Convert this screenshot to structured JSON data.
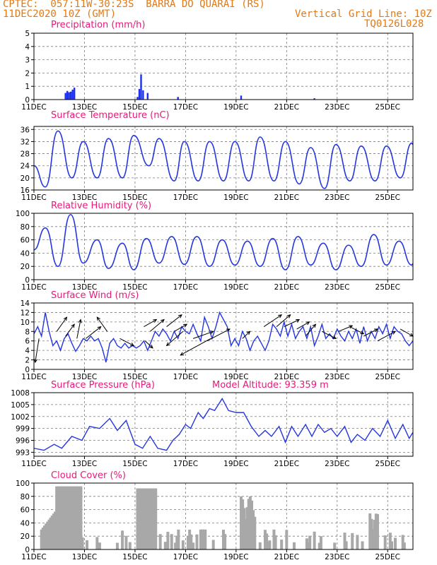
{
  "header": {
    "line1": "CPTEC:  057:11W-30:23S  BARRA DO QUARAI (RS)",
    "line2_left": "11DEC2020 10Z (GMT)",
    "line2_right": "Vertical Grid Line: 10Z",
    "line3_right": "TQ0126L028"
  },
  "colors": {
    "line": "#2436e0",
    "bar_precip": "#1c2ff0",
    "bar_cloud": "#a8a8a8",
    "title": "#e8197a",
    "header": "#e07a18"
  },
  "chart_data": [
    {
      "type": "bar",
      "title": "Precipitation (mm/h)",
      "x_ticks": [
        "11DEC",
        "13DEC",
        "15DEC",
        "17DEC",
        "19DEC",
        "21DEC",
        "23DEC",
        "25DEC"
      ],
      "y_ticks": [
        "0",
        "1",
        "2",
        "3",
        "4",
        "5"
      ],
      "ylim": [
        0,
        5
      ],
      "xlim_days": [
        0,
        15
      ],
      "grid": true,
      "x": [
        1.25,
        1.32,
        1.39,
        1.46,
        1.53,
        1.6,
        4.1,
        4.17,
        4.24,
        4.32,
        4.5,
        5.7,
        8.2,
        11.1
      ],
      "values": [
        0.5,
        0.65,
        0.55,
        0.6,
        0.75,
        0.9,
        0.2,
        0.8,
        1.9,
        0.7,
        0.5,
        0.2,
        0.3,
        0.1
      ]
    },
    {
      "type": "line",
      "title": "Surface Temperature (nC)",
      "x_ticks": [
        "11DEC",
        "13DEC",
        "15DEC",
        "17DEC",
        "19DEC",
        "21DEC",
        "23DEC",
        "25DEC"
      ],
      "y_ticks": [
        "16",
        "20",
        "24",
        "28",
        "32",
        "36"
      ],
      "ylim": [
        16,
        37
      ],
      "xlim_days": [
        0,
        15
      ],
      "grid": true,
      "min_max": [
        [
          0,
          24
        ],
        [
          0.45,
          17
        ],
        [
          0.95,
          35.5
        ],
        [
          1.5,
          20
        ],
        [
          1.95,
          32
        ],
        [
          2.5,
          20
        ],
        [
          2.95,
          33
        ],
        [
          3.5,
          20
        ],
        [
          3.95,
          34
        ],
        [
          4.55,
          24
        ],
        [
          4.95,
          33
        ],
        [
          5.55,
          19
        ],
        [
          5.95,
          32
        ],
        [
          6.5,
          19
        ],
        [
          6.95,
          32
        ],
        [
          7.5,
          19
        ],
        [
          7.95,
          32
        ],
        [
          8.5,
          19
        ],
        [
          8.95,
          33.5
        ],
        [
          9.5,
          19
        ],
        [
          9.95,
          32
        ],
        [
          10.5,
          18
        ],
        [
          10.95,
          30
        ],
        [
          11.5,
          16.5
        ],
        [
          11.95,
          31
        ],
        [
          12.5,
          19
        ],
        [
          12.95,
          30.5
        ],
        [
          13.5,
          19
        ],
        [
          13.95,
          30.5
        ],
        [
          14.5,
          20
        ],
        [
          14.95,
          31.5
        ],
        [
          15,
          31
        ]
      ]
    },
    {
      "type": "line",
      "title": "Relative Humidity (%)",
      "x_ticks": [
        "11DEC",
        "13DEC",
        "15DEC",
        "17DEC",
        "19DEC",
        "21DEC",
        "23DEC",
        "25DEC"
      ],
      "y_ticks": [
        "0",
        "20",
        "40",
        "60",
        "80",
        "100"
      ],
      "ylim": [
        0,
        100
      ],
      "xlim_days": [
        0,
        15
      ],
      "grid": true,
      "min_max": [
        [
          0,
          45
        ],
        [
          0.45,
          78
        ],
        [
          0.95,
          20
        ],
        [
          1.45,
          98
        ],
        [
          1.95,
          25
        ],
        [
          2.5,
          60
        ],
        [
          2.95,
          17
        ],
        [
          3.5,
          55
        ],
        [
          3.95,
          15
        ],
        [
          4.45,
          62
        ],
        [
          4.95,
          25
        ],
        [
          5.45,
          65
        ],
        [
          5.95,
          23
        ],
        [
          6.45,
          65
        ],
        [
          6.95,
          20
        ],
        [
          7.45,
          60
        ],
        [
          7.95,
          22
        ],
        [
          8.45,
          58
        ],
        [
          8.95,
          20
        ],
        [
          9.45,
          62
        ],
        [
          9.95,
          15
        ],
        [
          10.45,
          65
        ],
        [
          10.95,
          22
        ],
        [
          11.45,
          55
        ],
        [
          11.95,
          15
        ],
        [
          12.45,
          52
        ],
        [
          12.95,
          20
        ],
        [
          13.45,
          68
        ],
        [
          13.95,
          22
        ],
        [
          14.45,
          58
        ],
        [
          14.95,
          22
        ],
        [
          15,
          24
        ]
      ]
    },
    {
      "type": "line",
      "title": "Surface Wind (m/s)",
      "x_ticks": [
        "11DEC",
        "13DEC",
        "15DEC",
        "17DEC",
        "19DEC",
        "21DEC",
        "23DEC",
        "25DEC"
      ],
      "y_ticks": [
        "0",
        "2",
        "4",
        "6",
        "8",
        "10",
        "12",
        "14"
      ],
      "ylim": [
        0,
        14
      ],
      "xlim_days": [
        0,
        15
      ],
      "grid": true,
      "series_points": [
        [
          0,
          7.5
        ],
        [
          0.15,
          9
        ],
        [
          0.3,
          7
        ],
        [
          0.45,
          12
        ],
        [
          0.6,
          8
        ],
        [
          0.75,
          5
        ],
        [
          0.9,
          6
        ],
        [
          1.05,
          4
        ],
        [
          1.2,
          6.5
        ],
        [
          1.35,
          7.5
        ],
        [
          1.5,
          5.5
        ],
        [
          1.65,
          3.8
        ],
        [
          1.8,
          5
        ],
        [
          1.95,
          6.5
        ],
        [
          2.1,
          6
        ],
        [
          2.25,
          7
        ],
        [
          2.4,
          6
        ],
        [
          2.55,
          6.5
        ],
        [
          2.7,
          4.5
        ],
        [
          2.85,
          1.5
        ],
        [
          3.0,
          5.5
        ],
        [
          3.15,
          6.5
        ],
        [
          3.3,
          5
        ],
        [
          3.45,
          4.5
        ],
        [
          3.6,
          5.5
        ],
        [
          3.75,
          4.5
        ],
        [
          3.9,
          5
        ],
        [
          4.05,
          4.5
        ],
        [
          4.2,
          5
        ],
        [
          4.35,
          6
        ],
        [
          4.5,
          4
        ],
        [
          4.65,
          6
        ],
        [
          4.8,
          8
        ],
        [
          4.95,
          7
        ],
        [
          5.1,
          8.5
        ],
        [
          5.25,
          7.5
        ],
        [
          5.4,
          6
        ],
        [
          5.55,
          8
        ],
        [
          5.7,
          6.5
        ],
        [
          5.85,
          9
        ],
        [
          6.0,
          8
        ],
        [
          6.15,
          7.5
        ],
        [
          6.3,
          9.5
        ],
        [
          6.45,
          7.5
        ],
        [
          6.6,
          6
        ],
        [
          6.75,
          11
        ],
        [
          6.9,
          9
        ],
        [
          7.05,
          6.5
        ],
        [
          7.2,
          9
        ],
        [
          7.35,
          12
        ],
        [
          7.5,
          10.5
        ],
        [
          7.65,
          9
        ],
        [
          7.8,
          5
        ],
        [
          7.95,
          6.5
        ],
        [
          8.1,
          5
        ],
        [
          8.25,
          8
        ],
        [
          8.4,
          6.5
        ],
        [
          8.55,
          4
        ],
        [
          8.7,
          6
        ],
        [
          8.85,
          7
        ],
        [
          9.0,
          5.5
        ],
        [
          9.15,
          4
        ],
        [
          9.3,
          6
        ],
        [
          9.45,
          9.5
        ],
        [
          9.6,
          8.5
        ],
        [
          9.75,
          7
        ],
        [
          9.9,
          10
        ],
        [
          10.05,
          7
        ],
        [
          10.2,
          9.5
        ],
        [
          10.35,
          6.5
        ],
        [
          10.5,
          8
        ],
        [
          10.65,
          9
        ],
        [
          10.8,
          6.5
        ],
        [
          10.95,
          9
        ],
        [
          11.1,
          5
        ],
        [
          11.25,
          7
        ],
        [
          11.4,
          9.5
        ],
        [
          11.55,
          6.5
        ],
        [
          11.7,
          7.5
        ],
        [
          11.85,
          6.5
        ],
        [
          12.0,
          8.5
        ],
        [
          12.15,
          7
        ],
        [
          12.3,
          6
        ],
        [
          12.45,
          8
        ],
        [
          12.6,
          6.5
        ],
        [
          12.75,
          8.5
        ],
        [
          12.9,
          5.5
        ],
        [
          13.05,
          9
        ],
        [
          13.2,
          6
        ],
        [
          13.35,
          8
        ],
        [
          13.5,
          6.5
        ],
        [
          13.65,
          9
        ],
        [
          13.8,
          7.5
        ],
        [
          13.95,
          9.5
        ],
        [
          14.1,
          6.5
        ],
        [
          14.25,
          9
        ],
        [
          14.4,
          8
        ],
        [
          14.55,
          7.5
        ],
        [
          14.7,
          6
        ],
        [
          14.85,
          5
        ],
        [
          15,
          6
        ]
      ],
      "arrows": [
        [
          0.2,
          6.5,
          -0.15,
          -5
        ],
        [
          0.9,
          8,
          0.4,
          3
        ],
        [
          1.25,
          7,
          0.35,
          2.5
        ],
        [
          1.7,
          6.5,
          0.15,
          4
        ],
        [
          2.05,
          6.5,
          0.6,
          2.5
        ],
        [
          2.9,
          8,
          -0.4,
          3
        ],
        [
          3.4,
          6.5,
          0.55,
          -1.5
        ],
        [
          4.4,
          6,
          0.3,
          -1.5
        ],
        [
          4.35,
          9,
          0.5,
          1.5
        ],
        [
          4.6,
          8,
          0.55,
          2.5
        ],
        [
          5.25,
          9,
          0.6,
          2.5
        ],
        [
          5.55,
          8,
          0.5,
          1.5
        ],
        [
          5.9,
          8,
          -0.65,
          -3
        ],
        [
          6.3,
          6.5,
          0.8,
          1.5
        ],
        [
          6.85,
          6,
          0.9,
          2.5
        ],
        [
          7.0,
          6.5,
          -1.2,
          -3.5
        ],
        [
          8.25,
          6.5,
          0.3,
          1.5
        ],
        [
          9.1,
          9,
          0.7,
          2.5
        ],
        [
          9.6,
          9,
          0.55,
          2.5
        ],
        [
          9.9,
          9,
          0.6,
          1.5
        ],
        [
          10.4,
          8.5,
          0.5,
          1.5
        ],
        [
          10.75,
          7,
          0.4,
          2.5
        ],
        [
          11.4,
          8,
          0.55,
          -1.5
        ],
        [
          12.05,
          8,
          0.55,
          1.2
        ],
        [
          12.5,
          9,
          0.55,
          -1.5
        ],
        [
          13.05,
          7,
          0.55,
          1.5
        ],
        [
          13.6,
          6,
          0.7,
          2
        ],
        [
          14.5,
          8.5,
          0.5,
          -1.5
        ]
      ]
    },
    {
      "type": "line",
      "title": "Surface Pressure (hPa)",
      "annotation": "Model Altitude: 93.359 m",
      "x_ticks": [
        "11DEC",
        "13DEC",
        "15DEC",
        "17DEC",
        "19DEC",
        "21DEC",
        "23DEC",
        "25DEC"
      ],
      "y_ticks": [
        "993",
        "996",
        "999",
        "1002",
        "1005",
        "1008"
      ],
      "ylim": [
        992,
        1008
      ],
      "xlim_days": [
        0,
        15
      ],
      "grid": true,
      "series_points": [
        [
          0,
          994
        ],
        [
          0.4,
          993.5
        ],
        [
          0.8,
          995
        ],
        [
          1.1,
          994
        ],
        [
          1.5,
          997
        ],
        [
          1.9,
          996
        ],
        [
          2.2,
          999.5
        ],
        [
          2.6,
          999
        ],
        [
          3.0,
          1001.5
        ],
        [
          3.3,
          998.5
        ],
        [
          3.65,
          1001
        ],
        [
          4.0,
          995
        ],
        [
          4.3,
          994
        ],
        [
          4.6,
          997
        ],
        [
          4.9,
          994
        ],
        [
          5.25,
          993.5
        ],
        [
          5.5,
          996
        ],
        [
          5.75,
          997.5
        ],
        [
          6.0,
          1000
        ],
        [
          6.2,
          999
        ],
        [
          6.5,
          1003
        ],
        [
          6.7,
          1001.5
        ],
        [
          6.95,
          1004
        ],
        [
          7.15,
          1003.5
        ],
        [
          7.45,
          1006.5
        ],
        [
          7.7,
          1003.5
        ],
        [
          8.0,
          1003
        ],
        [
          8.3,
          1003
        ],
        [
          8.6,
          999.5
        ],
        [
          8.9,
          997
        ],
        [
          9.15,
          998.5
        ],
        [
          9.4,
          997
        ],
        [
          9.7,
          999.5
        ],
        [
          9.95,
          995.5
        ],
        [
          10.2,
          999.5
        ],
        [
          10.45,
          997
        ],
        [
          10.75,
          1000
        ],
        [
          11.0,
          997
        ],
        [
          11.25,
          1000
        ],
        [
          11.5,
          998
        ],
        [
          11.75,
          999
        ],
        [
          12.0,
          997
        ],
        [
          12.3,
          999.5
        ],
        [
          12.55,
          995.5
        ],
        [
          12.8,
          997.5
        ],
        [
          13.1,
          996
        ],
        [
          13.4,
          999
        ],
        [
          13.7,
          997
        ],
        [
          14.0,
          1001
        ],
        [
          14.3,
          996.5
        ],
        [
          14.6,
          1000
        ],
        [
          14.85,
          996.5
        ],
        [
          15,
          998
        ]
      ]
    },
    {
      "type": "bar",
      "title": "Cloud Cover (%)",
      "x_ticks": [
        "11DEC",
        "13DEC",
        "15DEC",
        "17DEC",
        "19DEC",
        "21DEC",
        "23DEC",
        "25DEC"
      ],
      "y_ticks": [
        "0",
        "20",
        "40",
        "60",
        "80",
        "100"
      ],
      "ylim": [
        0,
        100
      ],
      "xlim_days": [
        0,
        15
      ],
      "grid": true,
      "x": [
        0.3,
        0.36,
        0.42,
        0.48,
        0.54,
        0.6,
        0.66,
        0.72,
        0.78,
        0.84,
        0.9,
        0.96,
        1.02,
        1.08,
        1.14,
        1.2,
        1.26,
        1.32,
        1.38,
        1.44,
        1.5,
        1.56,
        1.62,
        1.68,
        1.74,
        1.8,
        1.86,
        1.92,
        2.1,
        2.5,
        2.6,
        3.3,
        3.5,
        3.65,
        3.8,
        4.1,
        4.16,
        4.22,
        4.28,
        4.34,
        4.4,
        4.46,
        4.52,
        4.58,
        4.64,
        4.7,
        4.76,
        4.82,
        5.0,
        5.2,
        5.3,
        5.45,
        5.6,
        5.66,
        5.72,
        5.9,
        6.1,
        6.16,
        6.22,
        6.3,
        6.45,
        6.6,
        6.66,
        6.72,
        6.78,
        7.1,
        7.5,
        7.56,
        8.2,
        8.26,
        8.32,
        8.38,
        8.44,
        8.5,
        8.56,
        8.62,
        8.68,
        8.74,
        8.95,
        9.15,
        9.21,
        9.27,
        9.33,
        9.5,
        9.56,
        9.8,
        10.0,
        10.3,
        10.8,
        10.86,
        10.92,
        11.1,
        11.3,
        11.36,
        11.9,
        12.3,
        12.36,
        12.6,
        12.8,
        13.0,
        13.3,
        13.36,
        13.42,
        13.48,
        13.54,
        13.6,
        13.9,
        14.1,
        14.16,
        14.3,
        14.6,
        14.66
      ]
    }
  ]
}
